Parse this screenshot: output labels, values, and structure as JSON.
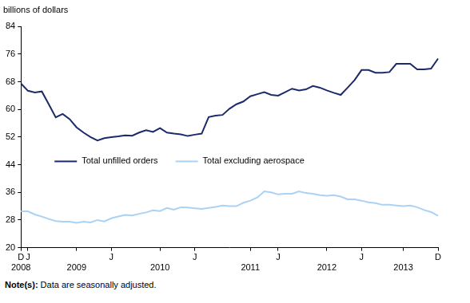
{
  "chart_data": {
    "type": "line",
    "title": "billions of dollars",
    "note": "Note(s): Data are seasonally adjusted.",
    "categories": [
      "D",
      "J",
      null,
      null,
      null,
      null,
      null,
      null,
      null,
      null,
      null,
      null,
      null,
      "J",
      null,
      null,
      null,
      null,
      null,
      null,
      null,
      null,
      null,
      null,
      null,
      "J",
      null,
      null,
      null,
      null,
      null,
      null,
      null,
      null,
      null,
      null,
      null,
      "J",
      null,
      null,
      null,
      null,
      null,
      null,
      null,
      null,
      null,
      null,
      null,
      "J",
      null,
      null,
      null,
      null,
      null,
      null,
      null,
      null,
      null,
      null,
      "D"
    ],
    "category_groups": [
      "2008",
      null,
      null,
      null,
      null,
      null,
      null,
      null,
      "2009",
      null,
      null,
      null,
      null,
      null,
      null,
      null,
      null,
      null,
      null,
      null,
      "2010",
      null,
      null,
      null,
      null,
      null,
      null,
      null,
      null,
      null,
      null,
      null,
      null,
      "2011",
      null,
      null,
      null,
      null,
      null,
      null,
      null,
      null,
      null,
      null,
      "2012",
      null,
      null,
      null,
      null,
      null,
      null,
      null,
      null,
      null,
      null,
      "2013",
      null,
      null,
      null,
      null,
      null
    ],
    "series": [
      {
        "name": "Total unfilled orders",
        "color": "#1b2a6b",
        "values": [
          67.5,
          65.4,
          64.9,
          65.2,
          61.5,
          57.7,
          58.7,
          57.2,
          54.8,
          53.3,
          52.0,
          51.0,
          51.7,
          52.0,
          52.2,
          52.5,
          52.4,
          53.3,
          54.0,
          53.5,
          54.6,
          53.3,
          53.0,
          52.8,
          52.3,
          52.7,
          53.0,
          57.8,
          58.2,
          58.4,
          60.2,
          61.5,
          62.3,
          63.8,
          64.4,
          65.0,
          64.2,
          64.0,
          65.0,
          66.0,
          65.5,
          65.8,
          66.8,
          66.3,
          65.5,
          64.8,
          64.2,
          66.3,
          68.5,
          71.4,
          71.4,
          70.6,
          70.6,
          70.8,
          73.2,
          73.2,
          73.2,
          71.6,
          71.6,
          71.8,
          74.7
        ]
      },
      {
        "name": "Total excluding aerospace",
        "color": "#a9d2f5",
        "values": [
          30.5,
          30.5,
          29.6,
          29.0,
          28.3,
          27.7,
          27.5,
          27.5,
          27.2,
          27.5,
          27.3,
          28.0,
          27.6,
          28.5,
          29.0,
          29.5,
          29.3,
          29.8,
          30.2,
          30.8,
          30.6,
          31.5,
          31.0,
          31.7,
          31.6,
          31.4,
          31.2,
          31.5,
          31.8,
          32.2,
          32.0,
          32.0,
          33.0,
          33.6,
          34.5,
          36.3,
          36.0,
          35.4,
          35.6,
          35.6,
          36.3,
          35.8,
          35.6,
          35.2,
          35.0,
          35.2,
          34.8,
          34.0,
          34.0,
          33.6,
          33.1,
          32.9,
          32.4,
          32.4,
          32.2,
          32.0,
          32.2,
          31.7,
          30.9,
          30.3,
          29.2
        ]
      }
    ],
    "ylim": [
      20,
      84
    ],
    "yticks": [
      20,
      28,
      36,
      44,
      52,
      60,
      68,
      76,
      84
    ],
    "grid": false,
    "legend": "center"
  }
}
